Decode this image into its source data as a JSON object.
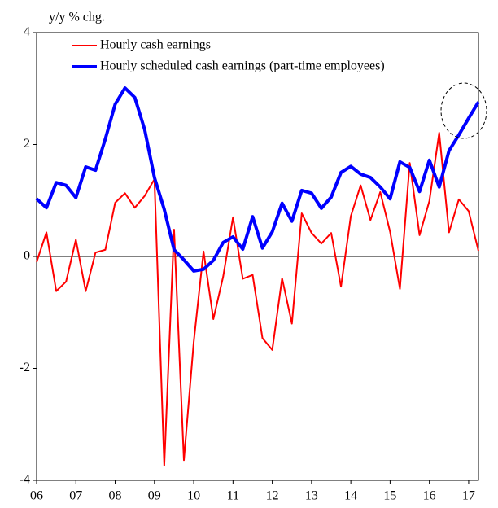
{
  "chart_data": {
    "type": "line",
    "y_axis_label": "y/y % chg.",
    "x": [
      2006,
      2006.25,
      2006.5,
      2006.75,
      2007,
      2007.25,
      2007.5,
      2007.75,
      2008,
      2008.25,
      2008.5,
      2008.75,
      2009,
      2009.25,
      2009.5,
      2009.75,
      2010,
      2010.25,
      2010.5,
      2010.75,
      2011,
      2011.25,
      2011.5,
      2011.75,
      2012,
      2012.25,
      2012.5,
      2012.75,
      2013,
      2013.25,
      2013.5,
      2013.75,
      2014,
      2014.25,
      2014.5,
      2014.75,
      2015,
      2015.25,
      2015.5,
      2015.75,
      2016,
      2016.25,
      2016.5,
      2016.75,
      2017,
      2017.25
    ],
    "series": [
      {
        "name": "Hourly cash earnings",
        "color": "#ff0000",
        "width": 2,
        "values": [
          -0.1,
          0.43,
          -0.62,
          -0.45,
          0.3,
          -0.62,
          0.07,
          0.12,
          0.96,
          1.13,
          0.87,
          1.08,
          1.38,
          -3.74,
          0.48,
          -3.64,
          -1.53,
          0.09,
          -1.12,
          -0.36,
          0.7,
          -0.4,
          -0.33,
          -1.46,
          -1.67,
          -0.39,
          -1.2,
          0.77,
          0.42,
          0.23,
          0.42,
          -0.54,
          0.72,
          1.27,
          0.65,
          1.15,
          0.44,
          -0.58,
          1.67,
          0.38,
          0.99,
          2.21,
          0.43,
          1.02,
          0.81,
          0.1
        ]
      },
      {
        "name": "Hourly scheduled cash earnings (part-time employees)",
        "color": "#0000ff",
        "width": 4,
        "values": [
          1.03,
          0.87,
          1.32,
          1.27,
          1.05,
          1.6,
          1.54,
          2.1,
          2.72,
          3.01,
          2.84,
          2.27,
          1.41,
          0.84,
          0.12,
          -0.06,
          -0.26,
          -0.23,
          -0.07,
          0.25,
          0.35,
          0.13,
          0.71,
          0.15,
          0.44,
          0.95,
          0.63,
          1.18,
          1.13,
          0.86,
          1.06,
          1.5,
          1.61,
          1.47,
          1.41,
          1.24,
          1.03,
          1.69,
          1.59,
          1.16,
          1.72,
          1.24,
          1.89,
          2.17,
          2.47,
          2.76
        ]
      }
    ],
    "xlim": [
      2006,
      2017.25
    ],
    "xticks": [
      {
        "value": 2006,
        "label": "06"
      },
      {
        "value": 2007,
        "label": "07"
      },
      {
        "value": 2008,
        "label": "08"
      },
      {
        "value": 2009,
        "label": "09"
      },
      {
        "value": 2010,
        "label": "10"
      },
      {
        "value": 2011,
        "label": "11"
      },
      {
        "value": 2012,
        "label": "12"
      },
      {
        "value": 2013,
        "label": "13"
      },
      {
        "value": 2014,
        "label": "14"
      },
      {
        "value": 2015,
        "label": "15"
      },
      {
        "value": 2016,
        "label": "16"
      },
      {
        "value": 2017,
        "label": "17"
      }
    ],
    "ylim": [
      -4,
      4
    ],
    "yticks": [
      -4,
      -2,
      0,
      2,
      4
    ],
    "zero_line": true,
    "legend": "top-left"
  }
}
